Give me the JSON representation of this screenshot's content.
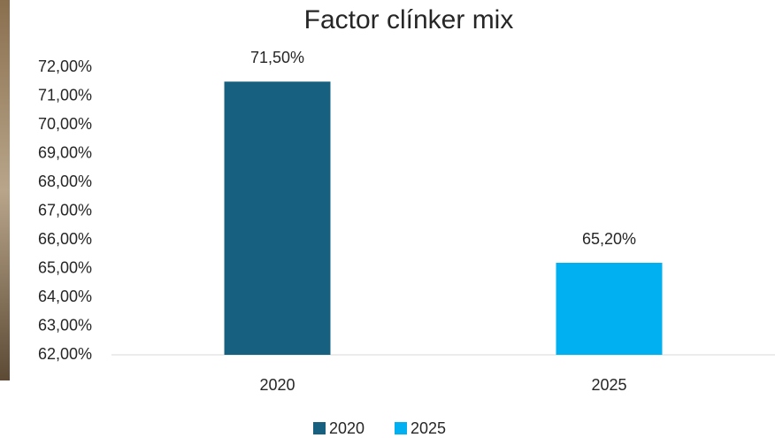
{
  "chart_data": {
    "type": "bar",
    "title": "Factor clínker mix",
    "categories": [
      "2020",
      "2025"
    ],
    "values": [
      71.5,
      65.2
    ],
    "value_labels": [
      "71,50%",
      "65,20%"
    ],
    "colors": [
      "#17607f",
      "#00b0f0"
    ],
    "ylim": [
      62,
      72
    ],
    "yticks": [
      {
        "value": 62,
        "label": "62,00%"
      },
      {
        "value": 63,
        "label": "63,00%"
      },
      {
        "value": 64,
        "label": "64,00%"
      },
      {
        "value": 65,
        "label": "65,00%"
      },
      {
        "value": 66,
        "label": "66,00%"
      },
      {
        "value": 67,
        "label": "67,00%"
      },
      {
        "value": 68,
        "label": "68,00%"
      },
      {
        "value": 69,
        "label": "69,00%"
      },
      {
        "value": 70,
        "label": "70,00%"
      },
      {
        "value": 71,
        "label": "71,00%"
      },
      {
        "value": 72,
        "label": "72,00%"
      }
    ],
    "grid": false,
    "legend": "bottom"
  }
}
